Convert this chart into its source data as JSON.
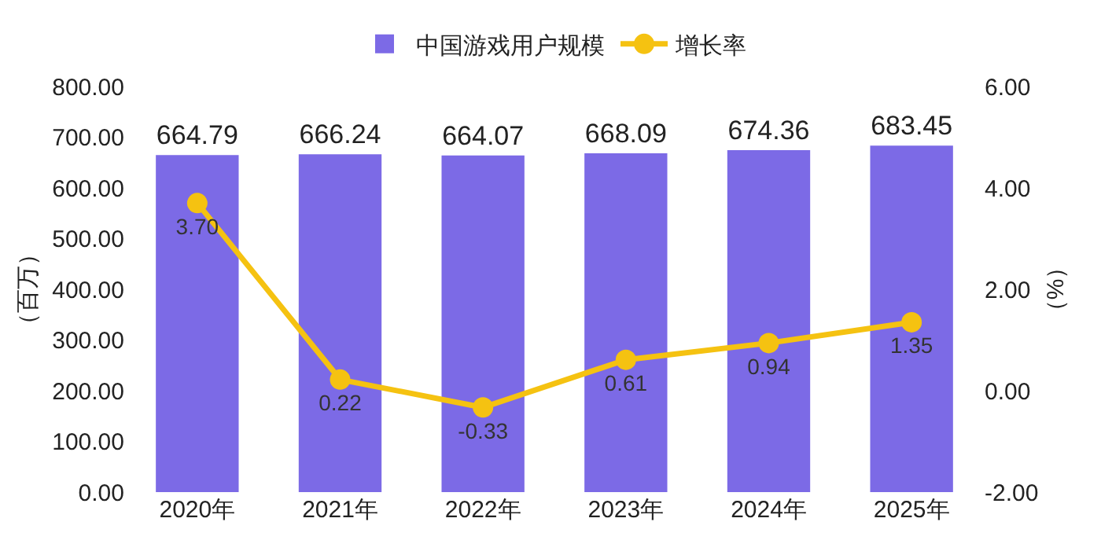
{
  "chart_data": {
    "type": "bar",
    "categories": [
      "2020年",
      "2021年",
      "2022年",
      "2023年",
      "2024年",
      "2025年"
    ],
    "series": [
      {
        "name": "中国游戏用户规模",
        "color": "#7c6ae6",
        "values": [
          664.79,
          666.24,
          664.07,
          668.09,
          674.36,
          683.45
        ],
        "value_labels": [
          "664.79",
          "666.24",
          "664.07",
          "668.09",
          "674.36",
          "683.45"
        ]
      },
      {
        "name": "增长率",
        "type": "line",
        "axis": "y2",
        "color": "#f5c211",
        "marker": "circle",
        "values": [
          3.7,
          0.22,
          -0.33,
          0.61,
          0.94,
          1.35
        ],
        "value_labels": [
          "3.70",
          "0.22",
          "-0.33",
          "0.61",
          "0.94",
          "1.35"
        ]
      }
    ],
    "ylabel": "（百万）",
    "y2label": "（%）",
    "ylim": [
      0,
      800
    ],
    "yticks": [
      {
        "value": 0,
        "label": "0.00"
      },
      {
        "value": 100,
        "label": "100.00"
      },
      {
        "value": 200,
        "label": "200.00"
      },
      {
        "value": 300,
        "label": "300.00"
      },
      {
        "value": 400,
        "label": "400.00"
      },
      {
        "value": 500,
        "label": "500.00"
      },
      {
        "value": 600,
        "label": "600.00"
      },
      {
        "value": 700,
        "label": "700.00"
      },
      {
        "value": 800,
        "label": "800.00"
      }
    ],
    "y2lim": [
      -2,
      6
    ],
    "y2ticks": [
      {
        "value": -2,
        "label": "-2.00"
      },
      {
        "value": 0,
        "label": "0.00"
      },
      {
        "value": 2,
        "label": "2.00"
      },
      {
        "value": 4,
        "label": "4.00"
      },
      {
        "value": 6,
        "label": "6.00"
      }
    ],
    "legend": "top",
    "grid": false
  }
}
